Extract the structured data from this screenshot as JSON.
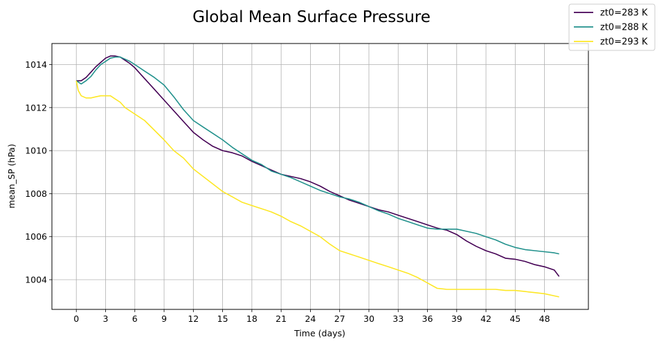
{
  "chart_data": {
    "type": "line",
    "title": "Global Mean Surface Pressure",
    "xlabel": "Time (days)",
    "ylabel": "mean_SP (hPa)",
    "xlim": [
      -2.5,
      52.5
    ],
    "ylim": [
      1002.62,
      1014.98
    ],
    "x_ticks": [
      0,
      3,
      6,
      9,
      12,
      15,
      18,
      21,
      24,
      27,
      30,
      33,
      36,
      39,
      42,
      45,
      48
    ],
    "y_ticks": [
      1004,
      1006,
      1008,
      1010,
      1012,
      1014
    ],
    "grid": true,
    "legend_position": "top-right (outside)",
    "series": [
      {
        "name": "zt0=283 K",
        "color": "#440154",
        "x": [
          0,
          0.5,
          1,
          1.5,
          2,
          2.5,
          3,
          3.5,
          4,
          4.5,
          5,
          5.5,
          6,
          7,
          8,
          9,
          10,
          11,
          12,
          13,
          14,
          15,
          16,
          17,
          18,
          19,
          20,
          21,
          22,
          23,
          24,
          25,
          26,
          27,
          28,
          29,
          30,
          31,
          32,
          33,
          34,
          35,
          36,
          37,
          38,
          39,
          40,
          41,
          42,
          43,
          44,
          45,
          46,
          47,
          48,
          49,
          49.5
        ],
        "y": [
          1013.25,
          1013.25,
          1013.4,
          1013.65,
          1013.9,
          1014.1,
          1014.3,
          1014.4,
          1014.4,
          1014.35,
          1014.2,
          1014.05,
          1013.85,
          1013.35,
          1012.85,
          1012.35,
          1011.85,
          1011.35,
          1010.85,
          1010.5,
          1010.2,
          1010.0,
          1009.9,
          1009.75,
          1009.5,
          1009.3,
          1009.1,
          1008.9,
          1008.8,
          1008.7,
          1008.55,
          1008.35,
          1008.1,
          1007.9,
          1007.7,
          1007.55,
          1007.4,
          1007.25,
          1007.15,
          1007.0,
          1006.85,
          1006.7,
          1006.55,
          1006.4,
          1006.3,
          1006.1,
          1005.8,
          1005.55,
          1005.35,
          1005.2,
          1005.0,
          1004.95,
          1004.85,
          1004.7,
          1004.6,
          1004.45,
          1004.15
        ]
      },
      {
        "name": "zt0=288 K",
        "color": "#21918c",
        "x": [
          0,
          0.5,
          1,
          1.5,
          2,
          2.5,
          3,
          3.5,
          4,
          4.5,
          5,
          5.5,
          6,
          7,
          8,
          9,
          10,
          11,
          12,
          13,
          14,
          15,
          16,
          17,
          18,
          19,
          20,
          21,
          22,
          23,
          24,
          25,
          26,
          27,
          28,
          29,
          30,
          31,
          32,
          33,
          34,
          35,
          36,
          37,
          38,
          39,
          40,
          41,
          42,
          43,
          44,
          45,
          46,
          47,
          48,
          49,
          49.5
        ],
        "y": [
          1013.25,
          1013.1,
          1013.25,
          1013.45,
          1013.75,
          1014.0,
          1014.15,
          1014.3,
          1014.35,
          1014.35,
          1014.25,
          1014.15,
          1014.0,
          1013.7,
          1013.4,
          1013.05,
          1012.5,
          1011.9,
          1011.4,
          1011.1,
          1010.8,
          1010.5,
          1010.15,
          1009.85,
          1009.55,
          1009.35,
          1009.05,
          1008.9,
          1008.75,
          1008.55,
          1008.35,
          1008.15,
          1008.0,
          1007.85,
          1007.75,
          1007.6,
          1007.4,
          1007.2,
          1007.05,
          1006.85,
          1006.7,
          1006.55,
          1006.4,
          1006.35,
          1006.35,
          1006.35,
          1006.25,
          1006.15,
          1006.0,
          1005.85,
          1005.65,
          1005.5,
          1005.4,
          1005.35,
          1005.3,
          1005.25,
          1005.2
        ]
      },
      {
        "name": "zt0=293 K",
        "color": "#fde725",
        "x": [
          0,
          0.2,
          0.5,
          1,
          1.5,
          2,
          2.5,
          3,
          3.5,
          4,
          4.5,
          5,
          5.5,
          6,
          7,
          8,
          9,
          10,
          11,
          12,
          13,
          14,
          15,
          16,
          17,
          18,
          19,
          20,
          21,
          22,
          23,
          24,
          25,
          26,
          27,
          28,
          29,
          30,
          31,
          32,
          33,
          34,
          35,
          36,
          37,
          38,
          39,
          40,
          41,
          42,
          43,
          44,
          45,
          46,
          47,
          48,
          49,
          49.5
        ],
        "y": [
          1013.25,
          1012.8,
          1012.55,
          1012.45,
          1012.45,
          1012.5,
          1012.55,
          1012.55,
          1012.55,
          1012.4,
          1012.25,
          1012.0,
          1011.85,
          1011.7,
          1011.4,
          1010.95,
          1010.5,
          1010.0,
          1009.65,
          1009.15,
          1008.8,
          1008.45,
          1008.1,
          1007.85,
          1007.6,
          1007.45,
          1007.3,
          1007.15,
          1006.95,
          1006.7,
          1006.5,
          1006.25,
          1006.0,
          1005.65,
          1005.35,
          1005.2,
          1005.05,
          1004.9,
          1004.75,
          1004.6,
          1004.45,
          1004.3,
          1004.1,
          1003.85,
          1003.6,
          1003.55,
          1003.55,
          1003.55,
          1003.55,
          1003.55,
          1003.55,
          1003.5,
          1003.5,
          1003.45,
          1003.4,
          1003.35,
          1003.25,
          1003.2
        ]
      }
    ]
  }
}
